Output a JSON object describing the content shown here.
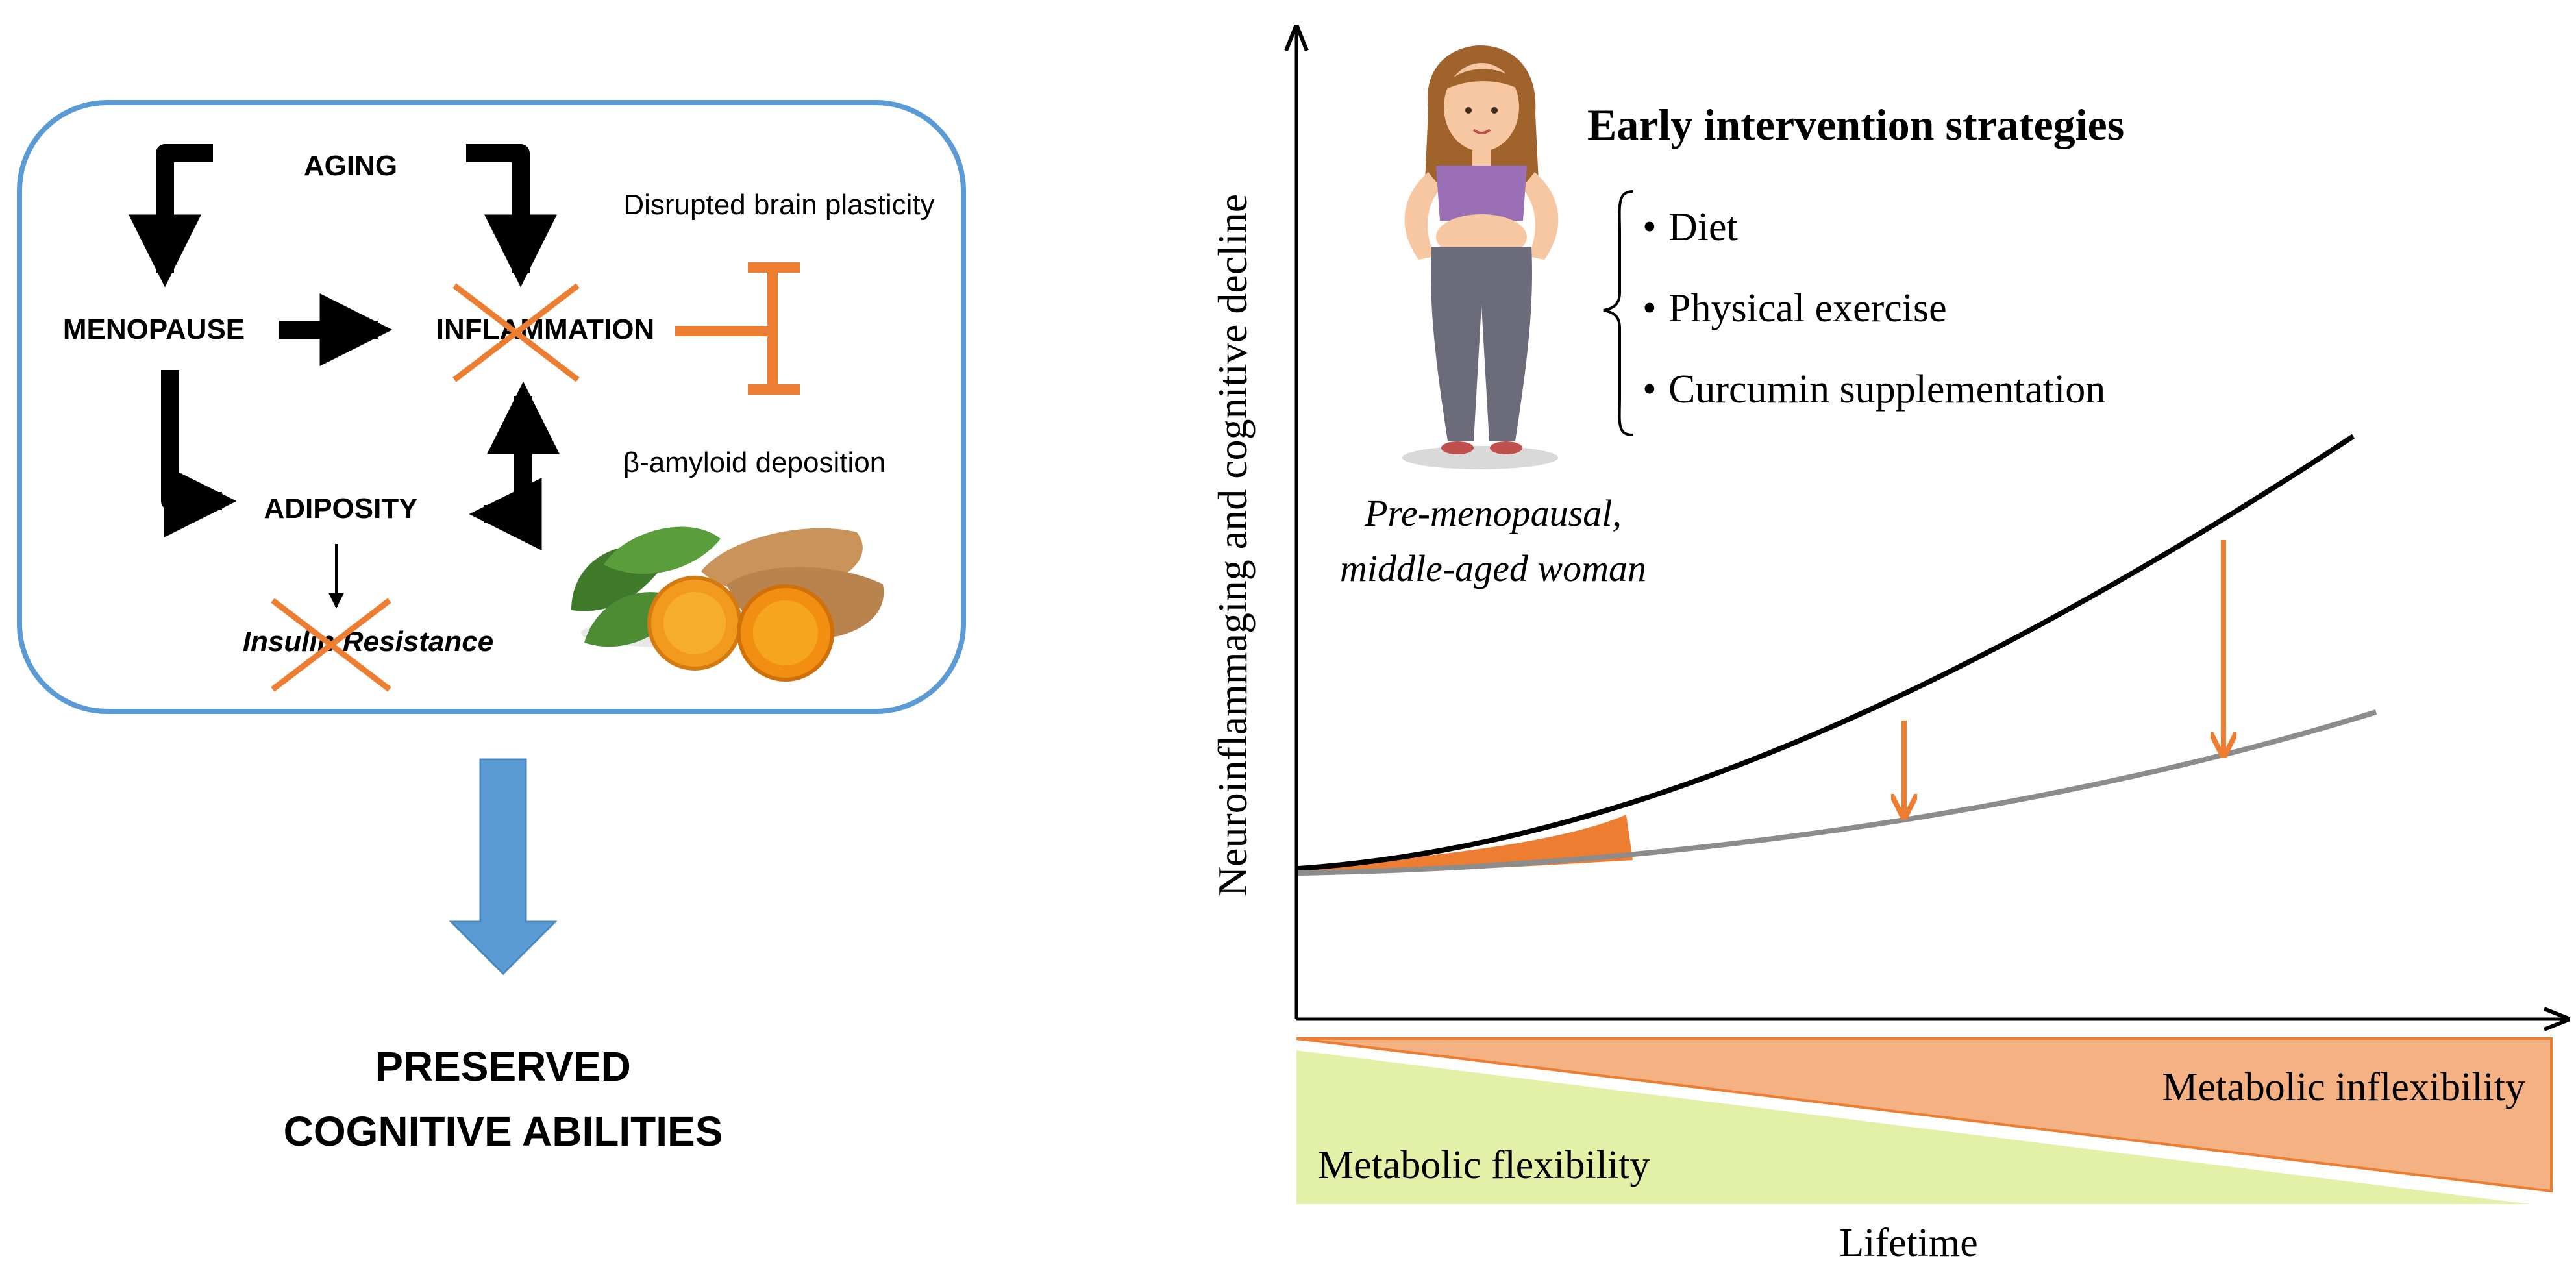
{
  "left_panel": {
    "aging": "AGING",
    "menopause": "MENOPAUSE",
    "inflammation": "INFLAMMATION",
    "adiposity": "ADIPOSITY",
    "insulin_resistance": "Insulin Resistance",
    "disrupted_plasticity": "Disrupted brain plasticity",
    "amyloid": "β-amyloid deposition",
    "outcome_line1": "PRESERVED",
    "outcome_line2": "COGNITIVE ABILITIES"
  },
  "right_panel": {
    "title": "Early intervention strategies",
    "strategies": [
      "Diet",
      "Physical exercise",
      "Curcumin supplementation"
    ],
    "woman_caption_line1": "Pre-menopausal,",
    "woman_caption_line2": "middle-aged woman",
    "y_axis_label": "Neuroinflammaging and cognitive decline",
    "x_axis_label": "Lifetime",
    "flexibility_label": "Metabolic flexibility",
    "inflexibility_label": "Metabolic inflexibility"
  },
  "colors": {
    "box_border": "#5b9bd5",
    "arrow_blue": "#5b9bd5",
    "orange": "#ed7d31",
    "inflexibility_fill": "#f4b183",
    "flexibility_fill": "#e2f0a8",
    "black": "#000000",
    "gray_curve": "#8c8c8c"
  }
}
